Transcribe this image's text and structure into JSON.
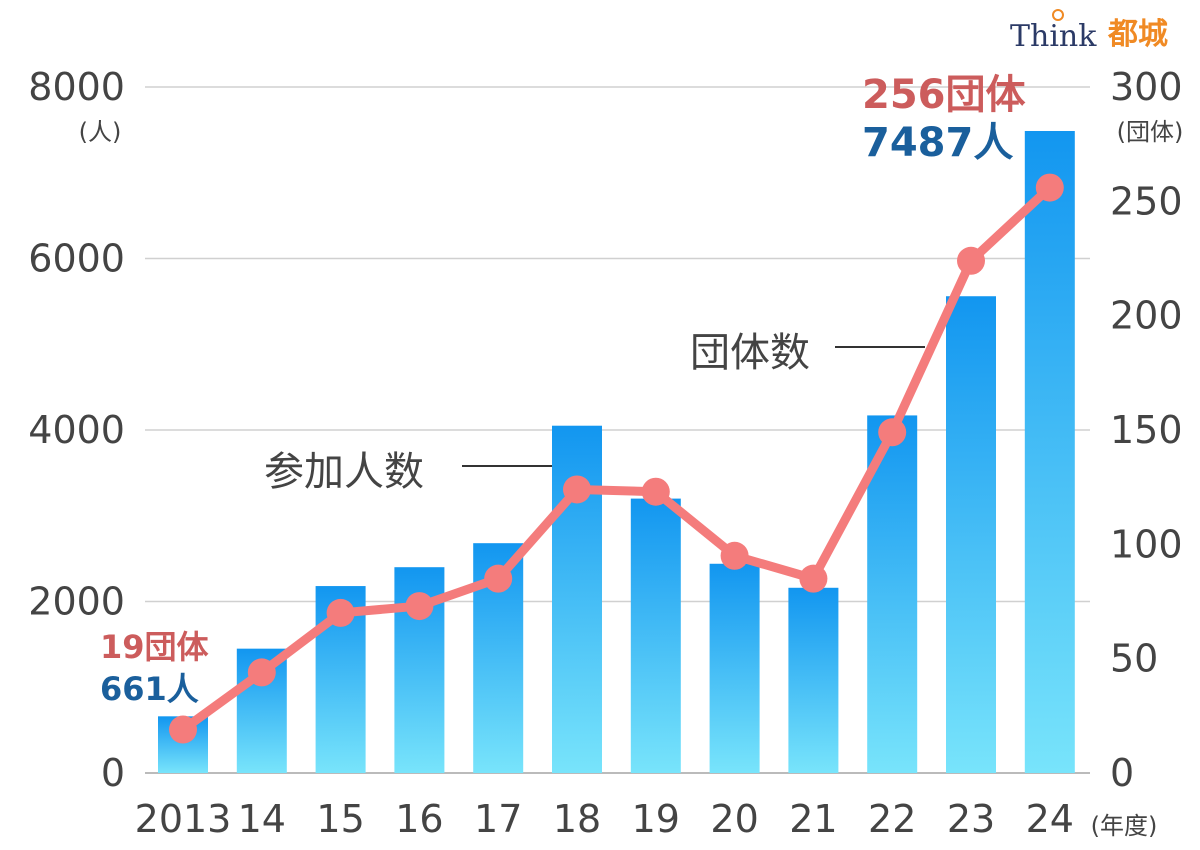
{
  "logo": {
    "text_en": "Think",
    "text_jp": "都城"
  },
  "chart_data": {
    "type": "bar",
    "title": "",
    "categories": [
      "2013",
      "14",
      "15",
      "16",
      "17",
      "18",
      "19",
      "20",
      "21",
      "22",
      "23",
      "24"
    ],
    "x_unit": "(年度)",
    "left_axis": {
      "unit": "(人)",
      "ylim": [
        0,
        8000
      ],
      "ticks": [
        0,
        2000,
        4000,
        6000,
        8000
      ]
    },
    "right_axis": {
      "unit": "(団体)",
      "ylim": [
        0,
        300
      ],
      "ticks": [
        0,
        50,
        100,
        150,
        200,
        250,
        300
      ]
    },
    "series": [
      {
        "name": "参加人数",
        "type": "bar",
        "axis": "left",
        "values": [
          661,
          1450,
          2180,
          2400,
          2680,
          4050,
          3200,
          2440,
          2160,
          4170,
          5560,
          7487
        ]
      },
      {
        "name": "団体数",
        "type": "line",
        "axis": "right",
        "values": [
          19,
          44,
          70,
          73,
          85,
          124,
          123,
          95,
          85,
          149,
          224,
          256
        ]
      }
    ],
    "annotations": {
      "first": {
        "groups": "19団体",
        "people": "661人"
      },
      "last": {
        "groups": "256団体",
        "people": "7487人"
      }
    },
    "colors": {
      "bar_top": "#1296f0",
      "bar_bottom": "#78e4fb",
      "line": "#f47c7c",
      "grid": "#d0d0d0",
      "groups_text": "#cc5c5c",
      "people_text": "#1a5f9c"
    },
    "grid": true,
    "legend": "inline-labels"
  }
}
